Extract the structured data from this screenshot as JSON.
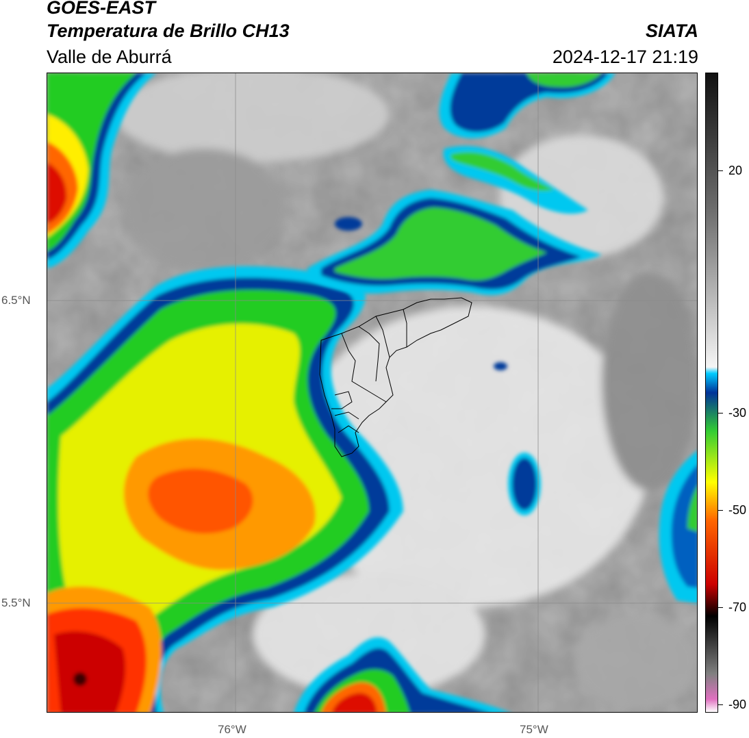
{
  "header": {
    "satellite": "GOES-EAST",
    "product": "Temperatura de Brillo CH13",
    "region": "Valle de Aburrá",
    "organization": "SIATA",
    "datetime": "2024-12-17 21:19"
  },
  "map": {
    "lat_labels": [
      "6.5°N",
      "5.5°N"
    ],
    "lon_labels": [
      "76°W",
      "75°W"
    ],
    "gridlines": true
  },
  "colorbar": {
    "ticks": [
      "20",
      "-30",
      "-50",
      "-70",
      "-90"
    ],
    "palette": [
      "#ffffff",
      "#e070c0",
      "#808080",
      "#000000",
      "#cc0000",
      "#ff6600",
      "#ffff00",
      "#33cc33",
      "#003399",
      "#00ccff",
      "#f5f5f5",
      "#707070",
      "#111111"
    ]
  }
}
